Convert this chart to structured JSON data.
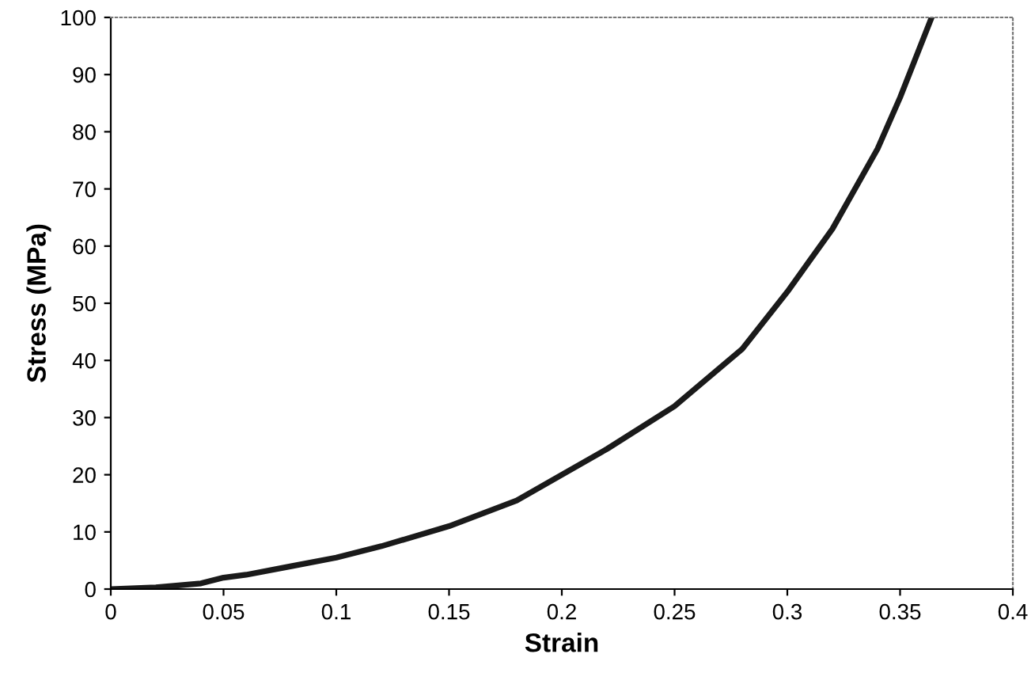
{
  "chart_data": {
    "type": "line",
    "xlabel": "Strain",
    "ylabel": "Stress (MPa)",
    "series": [
      {
        "color": "#1a1a1a",
        "x": [
          0,
          0.02,
          0.04,
          0.05,
          0.06,
          0.08,
          0.1,
          0.12,
          0.15,
          0.18,
          0.2,
          0.22,
          0.25,
          0.28,
          0.3,
          0.32,
          0.34,
          0.35,
          0.364
        ],
        "values": [
          0,
          0.3,
          1,
          2,
          2.5,
          4,
          5.5,
          7.5,
          11,
          15.5,
          20,
          24.5,
          32,
          42,
          52,
          63,
          77,
          86,
          100
        ]
      }
    ],
    "xlim": [
      0,
      0.4
    ],
    "ylim": [
      0,
      100
    ],
    "xticks": [
      0,
      0.05,
      0.1,
      0.15,
      0.2,
      0.25,
      0.3,
      0.35,
      0.4
    ],
    "yticks": [
      0,
      10,
      20,
      30,
      40,
      50,
      60,
      70,
      80,
      90,
      100
    ],
    "grid": false,
    "marker": "none",
    "line_style": "solid"
  }
}
